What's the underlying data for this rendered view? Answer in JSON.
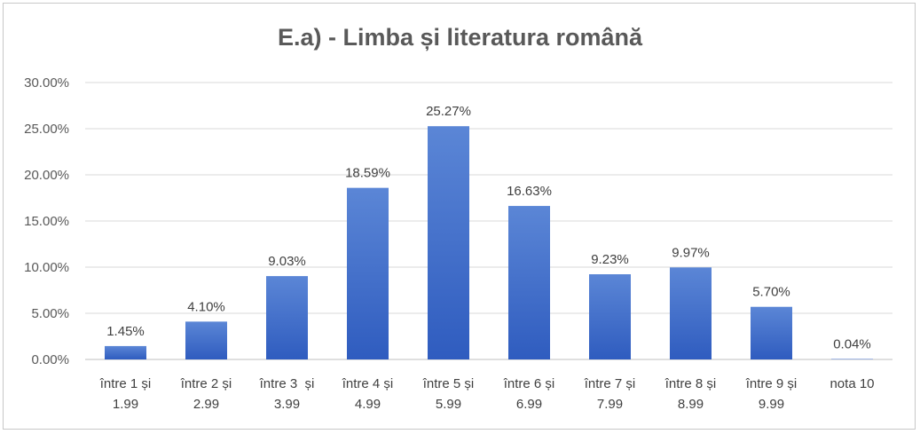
{
  "chart_data": {
    "type": "bar",
    "title": "E.a) - Limba și literatura română",
    "categories": [
      [
        "între 1 și",
        "1.99"
      ],
      [
        "între 2 și",
        "2.99"
      ],
      [
        "între 3  și",
        "3.99"
      ],
      [
        "între 4 și",
        "4.99"
      ],
      [
        "între 5 și",
        "5.99"
      ],
      [
        "între 6 și",
        "6.99"
      ],
      [
        "între 7 și",
        "7.99"
      ],
      [
        "între 8 și",
        "8.99"
      ],
      [
        "între 9 și",
        "9.99"
      ],
      [
        "nota 10",
        ""
      ]
    ],
    "values": [
      1.45,
      4.1,
      9.03,
      18.59,
      25.27,
      16.63,
      9.23,
      9.97,
      5.7,
      0.04
    ],
    "data_labels": [
      "1.45%",
      "4.10%",
      "9.03%",
      "18.59%",
      "25.27%",
      "16.63%",
      "9.23%",
      "9.97%",
      "5.70%",
      "0.04%"
    ],
    "y_ticks": [
      "0.00%",
      "5.00%",
      "10.00%",
      "15.00%",
      "20.00%",
      "25.00%",
      "30.00%"
    ],
    "ylim": [
      0,
      30
    ],
    "grid": true,
    "bar_color_top": "#5b86d6",
    "bar_color_bottom": "#2f5cbf"
  }
}
